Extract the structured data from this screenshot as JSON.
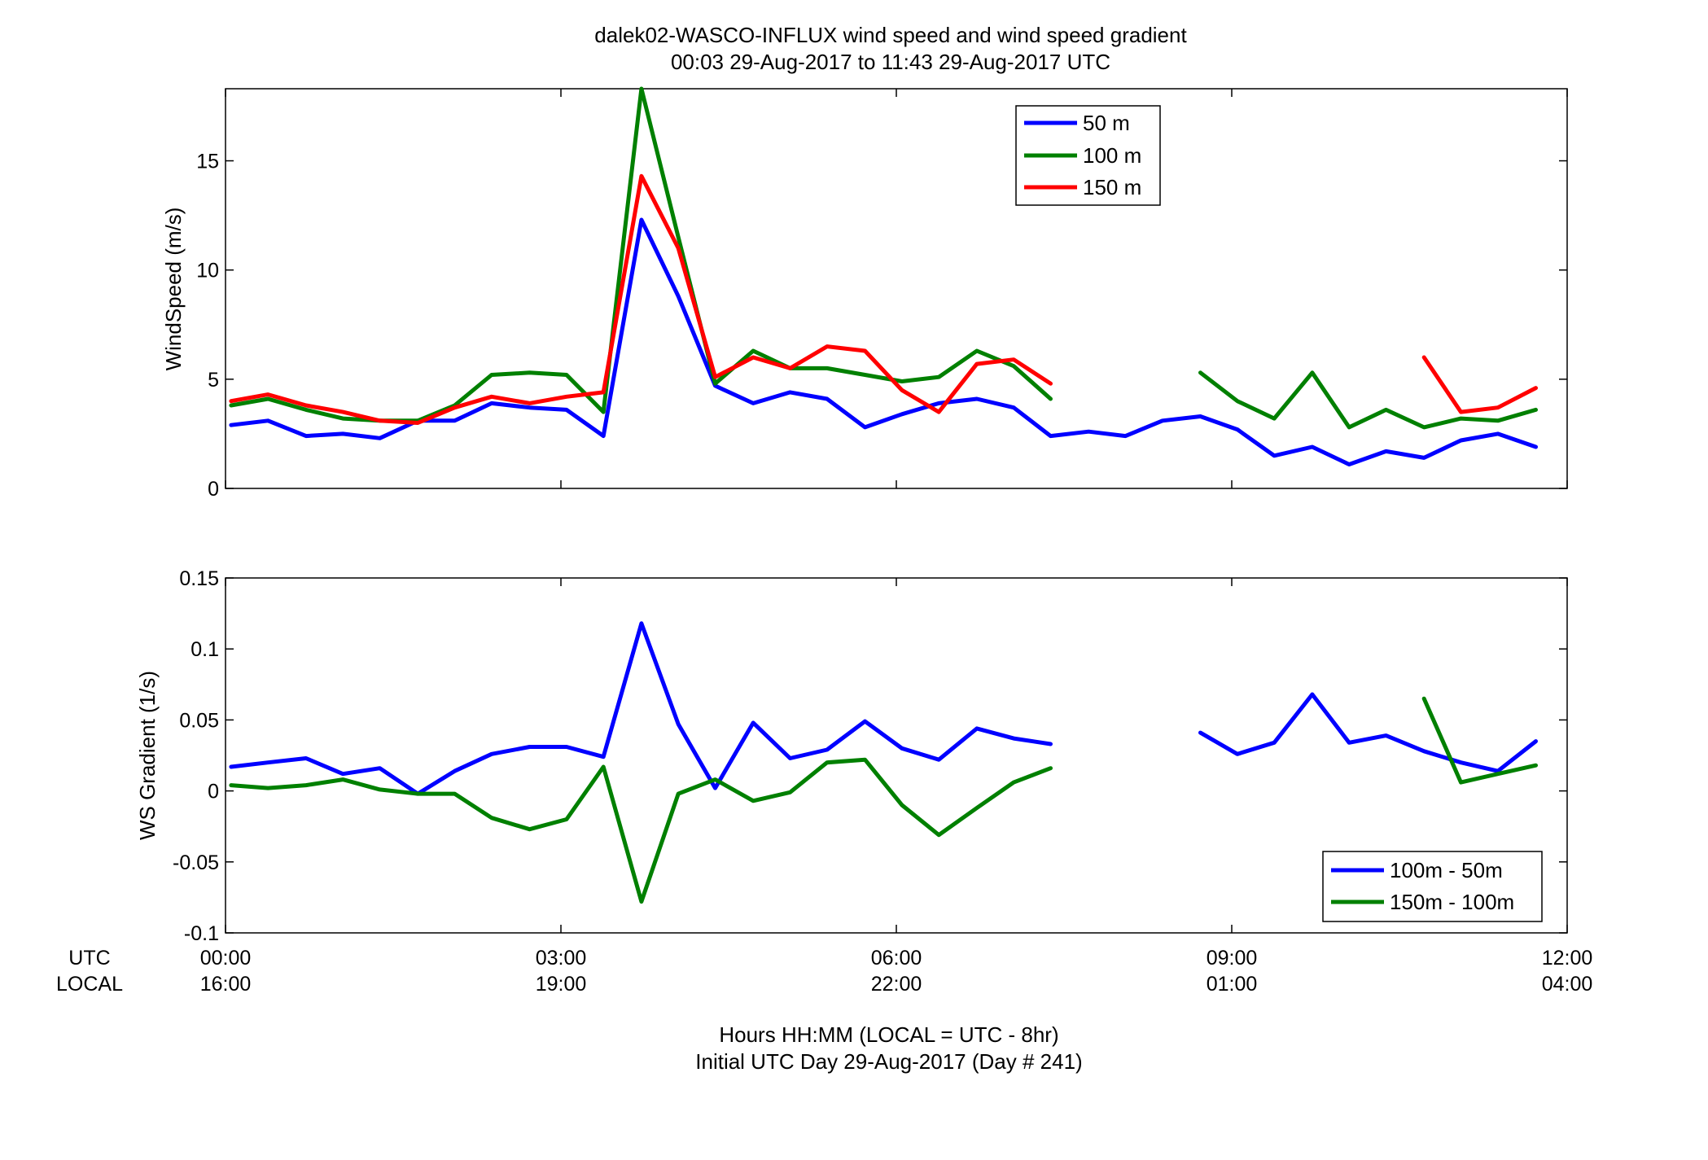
{
  "title_line1": "dalek02-WASCO-INFLUX  wind speed and wind speed gradient",
  "title_line2": "00:03 29-Aug-2017 to 11:43 29-Aug-2017  UTC",
  "xaxis": {
    "row_label_utc": "UTC",
    "row_label_local": "LOCAL",
    "ticks_utc": [
      "00:00",
      "03:00",
      "06:00",
      "09:00",
      "12:00"
    ],
    "ticks_local": [
      "16:00",
      "19:00",
      "22:00",
      "01:00",
      "04:00"
    ],
    "xlabel_line1": "Hours HH:MM  (LOCAL = UTC - 8hr)",
    "xlabel_line2": "Initial UTC Day 29-Aug-2017 (Day # 241)"
  },
  "chart_data": [
    {
      "type": "line",
      "ylabel": "WindSpeed (m/s)",
      "xlim": [
        0,
        12
      ],
      "ylim": [
        0,
        18.3
      ],
      "yticks": [
        "0",
        "5",
        "10",
        "15"
      ],
      "grid": false,
      "legend_position": "top-right",
      "x_units": "hours UTC",
      "series": [
        {
          "name": "50 m",
          "color": "#0000ff",
          "points": [
            [
              0.05,
              2.9
            ],
            [
              0.38,
              3.1
            ],
            [
              0.72,
              2.4
            ],
            [
              1.05,
              2.5
            ],
            [
              1.38,
              2.3
            ],
            [
              1.72,
              3.1
            ],
            [
              2.05,
              3.1
            ],
            [
              2.38,
              3.9
            ],
            [
              2.72,
              3.7
            ],
            [
              3.05,
              3.6
            ],
            [
              3.38,
              2.4
            ],
            [
              3.72,
              12.3
            ],
            [
              4.05,
              8.8
            ],
            [
              4.38,
              4.7
            ],
            [
              4.72,
              3.9
            ],
            [
              5.05,
              4.4
            ],
            [
              5.38,
              4.1
            ],
            [
              5.72,
              2.8
            ],
            [
              6.05,
              3.4
            ],
            [
              6.38,
              3.9
            ],
            [
              6.72,
              4.1
            ],
            [
              7.05,
              3.7
            ],
            [
              7.38,
              2.4
            ],
            [
              7.72,
              2.6
            ],
            [
              8.05,
              2.4
            ],
            [
              8.38,
              3.1
            ],
            [
              8.72,
              3.3
            ],
            [
              9.05,
              2.7
            ],
            [
              9.38,
              1.5
            ],
            [
              9.72,
              1.9
            ],
            [
              10.05,
              1.1
            ],
            [
              10.38,
              1.7
            ],
            [
              10.72,
              1.4
            ],
            [
              11.05,
              2.2
            ],
            [
              11.38,
              2.5
            ],
            [
              11.72,
              1.9
            ]
          ]
        },
        {
          "name": "100 m",
          "color": "#008000",
          "points": [
            [
              0.05,
              3.8
            ],
            [
              0.38,
              4.1
            ],
            [
              0.72,
              3.6
            ],
            [
              1.05,
              3.2
            ],
            [
              1.38,
              3.1
            ],
            [
              1.72,
              3.1
            ],
            [
              2.05,
              3.8
            ],
            [
              2.38,
              5.2
            ],
            [
              2.72,
              5.3
            ],
            [
              3.05,
              5.2
            ],
            [
              3.38,
              3.5
            ],
            [
              3.72,
              18.3
            ],
            [
              4.05,
              11.5
            ],
            [
              4.38,
              4.8
            ],
            [
              4.72,
              6.3
            ],
            [
              5.05,
              5.5
            ],
            [
              5.38,
              5.5
            ],
            [
              5.72,
              5.2
            ],
            [
              6.05,
              4.9
            ],
            [
              6.38,
              5.1
            ],
            [
              6.72,
              6.3
            ],
            [
              7.05,
              5.6
            ],
            [
              7.38,
              4.1
            ],
            null,
            [
              8.72,
              5.3
            ],
            [
              9.05,
              4.0
            ],
            [
              9.38,
              3.2
            ],
            [
              9.72,
              5.3
            ],
            [
              10.05,
              2.8
            ],
            [
              10.38,
              3.6
            ],
            [
              10.72,
              2.8
            ],
            [
              11.05,
              3.2
            ],
            [
              11.38,
              3.1
            ],
            [
              11.72,
              3.6
            ]
          ]
        },
        {
          "name": "150 m",
          "color": "#ff0000",
          "points": [
            [
              0.05,
              4.0
            ],
            [
              0.38,
              4.3
            ],
            [
              0.72,
              3.8
            ],
            [
              1.05,
              3.5
            ],
            [
              1.38,
              3.1
            ],
            [
              1.72,
              3.0
            ],
            [
              2.05,
              3.7
            ],
            [
              2.38,
              4.2
            ],
            [
              2.72,
              3.9
            ],
            [
              3.05,
              4.2
            ],
            [
              3.38,
              4.4
            ],
            [
              3.72,
              14.3
            ],
            [
              4.05,
              11.0
            ],
            [
              4.38,
              5.1
            ],
            [
              4.72,
              6.0
            ],
            [
              5.05,
              5.5
            ],
            [
              5.38,
              6.5
            ],
            [
              5.72,
              6.3
            ],
            [
              6.05,
              4.5
            ],
            [
              6.38,
              3.5
            ],
            [
              6.72,
              5.7
            ],
            [
              7.05,
              5.9
            ],
            [
              7.38,
              4.8
            ],
            null,
            [
              10.72,
              6.0
            ],
            [
              11.05,
              3.5
            ],
            [
              11.38,
              3.7
            ],
            [
              11.72,
              4.6
            ]
          ]
        }
      ]
    },
    {
      "type": "line",
      "ylabel": "WS Gradient (1/s)",
      "xlim": [
        0,
        12
      ],
      "ylim": [
        -0.1,
        0.15
      ],
      "yticks": [
        "-0.1",
        "-0.05",
        "0",
        "0.05",
        "0.1",
        "0.15"
      ],
      "grid": false,
      "legend_position": "bottom-right",
      "x_units": "hours UTC",
      "series": [
        {
          "name": "100m - 50m",
          "color": "#0000ff",
          "points": [
            [
              0.05,
              0.017
            ],
            [
              0.38,
              0.02
            ],
            [
              0.72,
              0.023
            ],
            [
              1.05,
              0.012
            ],
            [
              1.38,
              0.016
            ],
            [
              1.72,
              -0.002
            ],
            [
              2.05,
              0.014
            ],
            [
              2.38,
              0.026
            ],
            [
              2.72,
              0.031
            ],
            [
              3.05,
              0.031
            ],
            [
              3.38,
              0.024
            ],
            [
              3.72,
              0.118
            ],
            [
              4.05,
              0.047
            ],
            [
              4.38,
              0.002
            ],
            [
              4.72,
              0.048
            ],
            [
              5.05,
              0.023
            ],
            [
              5.38,
              0.029
            ],
            [
              5.72,
              0.049
            ],
            [
              6.05,
              0.03
            ],
            [
              6.38,
              0.022
            ],
            [
              6.72,
              0.044
            ],
            [
              7.05,
              0.037
            ],
            [
              7.38,
              0.033
            ],
            null,
            [
              8.72,
              0.041
            ],
            [
              9.05,
              0.026
            ],
            [
              9.38,
              0.034
            ],
            [
              9.72,
              0.068
            ],
            [
              10.05,
              0.034
            ],
            [
              10.38,
              0.039
            ],
            [
              10.72,
              0.028
            ],
            [
              11.05,
              0.02
            ],
            [
              11.38,
              0.014
            ],
            [
              11.72,
              0.035
            ]
          ]
        },
        {
          "name": "150m - 100m",
          "color": "#008000",
          "points": [
            [
              0.05,
              0.004
            ],
            [
              0.38,
              0.002
            ],
            [
              0.72,
              0.004
            ],
            [
              1.05,
              0.008
            ],
            [
              1.38,
              0.001
            ],
            [
              1.72,
              -0.002
            ],
            [
              2.05,
              -0.002
            ],
            [
              2.38,
              -0.019
            ],
            [
              2.72,
              -0.027
            ],
            [
              3.05,
              -0.02
            ],
            [
              3.38,
              0.017
            ],
            [
              3.72,
              -0.078
            ],
            [
              4.05,
              -0.002
            ],
            [
              4.38,
              0.008
            ],
            [
              4.72,
              -0.007
            ],
            [
              5.05,
              -0.001
            ],
            [
              5.38,
              0.02
            ],
            [
              5.72,
              0.022
            ],
            [
              6.05,
              -0.01
            ],
            [
              6.38,
              -0.031
            ],
            [
              6.72,
              -0.012
            ],
            [
              7.05,
              0.006
            ],
            [
              7.38,
              0.016
            ],
            null,
            [
              10.72,
              0.065
            ],
            [
              11.05,
              0.006
            ],
            [
              11.38,
              0.012
            ],
            [
              11.72,
              0.018
            ]
          ]
        }
      ]
    }
  ]
}
